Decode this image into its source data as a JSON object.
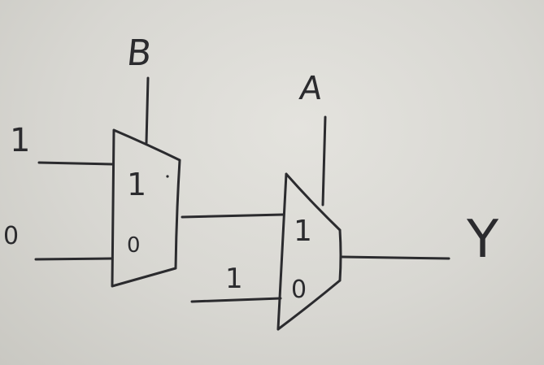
{
  "diagram": {
    "mux1": {
      "select_label": "B",
      "input_top_label": "1",
      "input_bottom_label": "0",
      "port_top_label": "1",
      "port_bottom_label": "0"
    },
    "mux2": {
      "select_label": "A",
      "input_bottom_label": "1",
      "port_top_label": "1",
      "port_bottom_label": "0"
    },
    "output_label": "Y"
  }
}
